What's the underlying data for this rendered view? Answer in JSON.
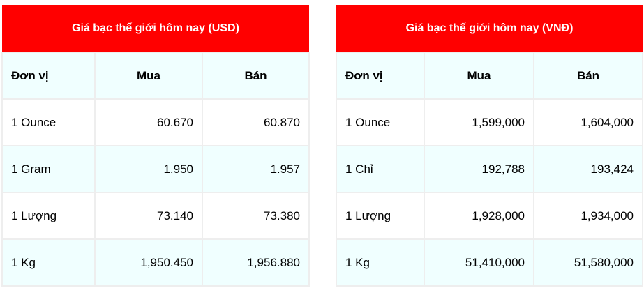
{
  "colors": {
    "header": "#ff0000",
    "alt_row": "#f0ffff",
    "border": "#eeeeee"
  },
  "usd": {
    "title": "Giá bạc thế giới hôm nay (USD)",
    "columns": [
      "Đơn vị",
      "Mua",
      "Bán"
    ],
    "rows": [
      [
        "1 Ounce",
        "60.670",
        "60.870"
      ],
      [
        "1 Gram",
        "1.950",
        "1.957"
      ],
      [
        "1 Lượng",
        "73.140",
        "73.380"
      ],
      [
        "1 Kg",
        "1,950.450",
        "1,956.880"
      ]
    ]
  },
  "vnd": {
    "title": "Giá bạc thế giới hôm nay (VNĐ)",
    "columns": [
      "Đơn vị",
      "Mua",
      "Bán"
    ],
    "rows": [
      [
        "1 Ounce",
        "1,599,000",
        "1,604,000"
      ],
      [
        "1 Chỉ",
        "192,788",
        "193,424"
      ],
      [
        "1 Lượng",
        "1,928,000",
        "1,934,000"
      ],
      [
        "1 Kg",
        "51,410,000",
        "51,580,000"
      ]
    ]
  }
}
